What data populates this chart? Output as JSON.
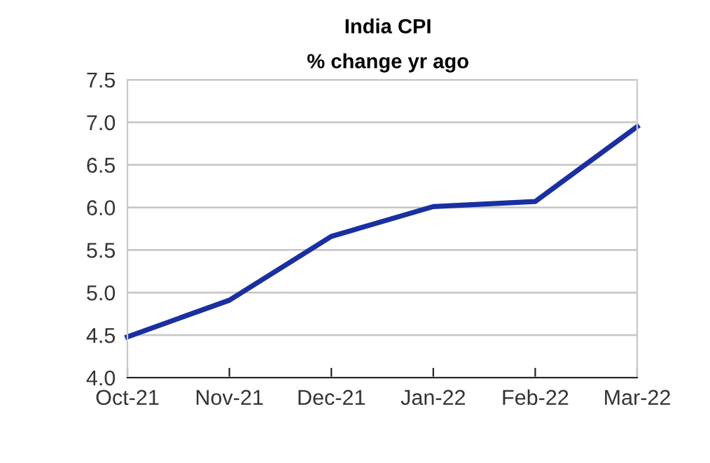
{
  "chart_data": {
    "type": "line",
    "title": "India CPI",
    "subtitle": "% change yr ago",
    "categories": [
      "Oct-21",
      "Nov-21",
      "Dec-21",
      "Jan-22",
      "Feb-22",
      "Mar-22"
    ],
    "series": [
      {
        "color": "#1a2fa0",
        "values": [
          4.48,
          4.91,
          5.66,
          6.01,
          6.07,
          6.95
        ]
      }
    ],
    "ylim": [
      4.0,
      7.5
    ],
    "yticks": [
      {
        "value": 4.0,
        "label": "4.0"
      },
      {
        "value": 4.5,
        "label": "4.5"
      },
      {
        "value": 5.0,
        "label": "5.0"
      },
      {
        "value": 5.5,
        "label": "5.5"
      },
      {
        "value": 6.0,
        "label": "6.0"
      },
      {
        "value": 6.5,
        "label": "6.5"
      },
      {
        "value": 7.0,
        "label": "7.0"
      },
      {
        "value": 7.5,
        "label": "7.5"
      }
    ],
    "grid": "y",
    "marker": "none",
    "line_style": "solid"
  }
}
